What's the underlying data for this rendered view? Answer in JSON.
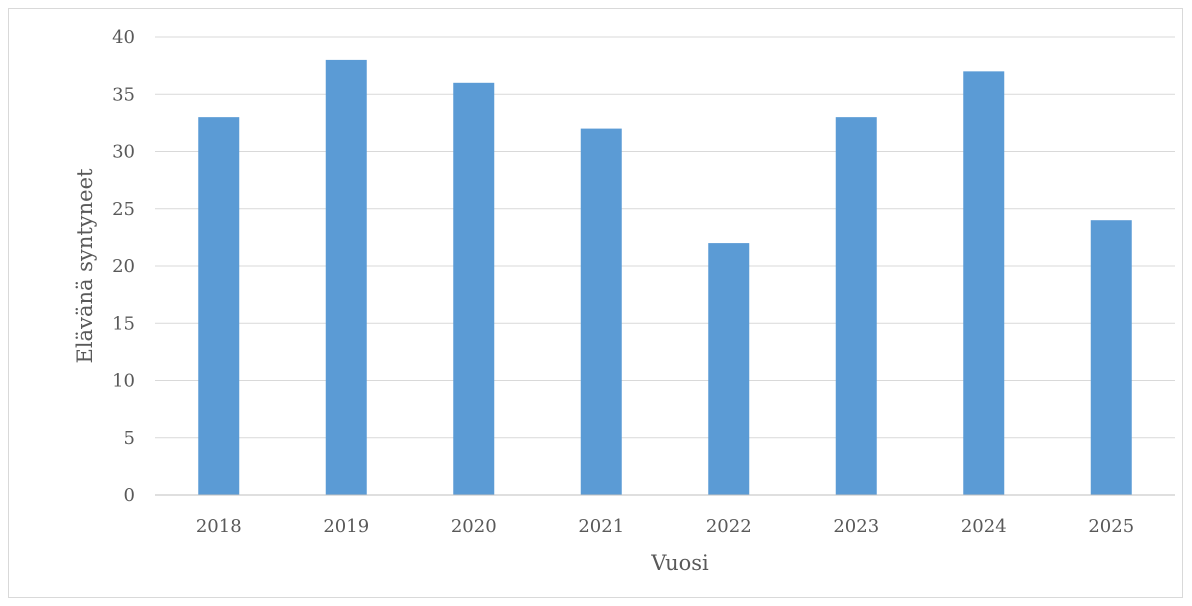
{
  "chart_data": {
    "type": "bar",
    "title": "",
    "xlabel": "Vuosi",
    "ylabel": "Elävänä syntyneet",
    "categories": [
      "2018",
      "2019",
      "2020",
      "2021",
      "2022",
      "2023",
      "2024",
      "2025"
    ],
    "values": [
      33,
      38,
      36,
      32,
      22,
      33,
      37,
      24
    ],
    "ylim": [
      0,
      40
    ],
    "yticks": [
      "0",
      "5",
      "10",
      "15",
      "20",
      "25",
      "30",
      "35",
      "40"
    ],
    "grid": true,
    "legend": "none",
    "colors": {
      "bar": "#5b9bd5",
      "grid": "#d9d9d9",
      "axis": "#bfbfbf",
      "text": "#595959"
    }
  }
}
